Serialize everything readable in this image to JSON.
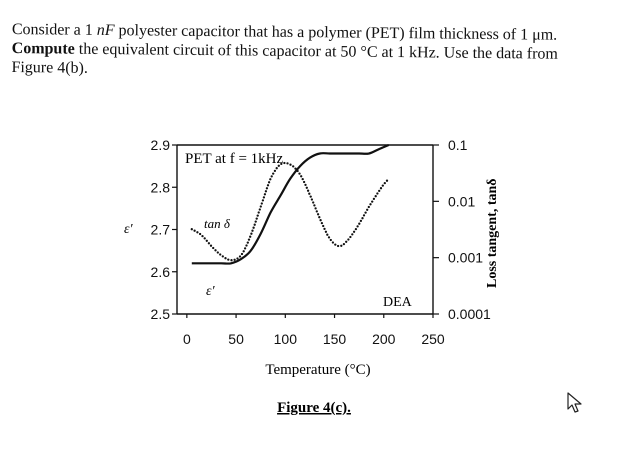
{
  "problem": {
    "line1_pre": "Consider a 1 ",
    "line1_unit": "nF",
    "line1_post": " polyester capacitor that has a polymer (PET) film thickness of 1 μm.",
    "line2_bold": "Compute",
    "line2_rest": " the equivalent circuit of this capacitor at 50 °C at 1 kHz. Use the data from",
    "line3": "Figure 4(b)."
  },
  "figure": {
    "caption": "Figure 4(c).",
    "annotation": "PET at f = 1kHz",
    "label_tan": "tan δ",
    "label_eps": "ε′",
    "label_dea": "DEA",
    "colors": {
      "ink": "#111111",
      "background": "#ffffff"
    }
  },
  "chart_data": {
    "type": "line",
    "xlabel": "Temperature (°C)",
    "ylabel_left": "ε′",
    "ylabel_right": "Loss tangent, tanδ",
    "xlim": [
      -10,
      250
    ],
    "ylim_left": [
      2.5,
      2.9
    ],
    "ylim_right_log": [
      0.0001,
      0.1
    ],
    "x_ticks": [
      "0",
      "50",
      "100",
      "150",
      "200",
      "250"
    ],
    "y_left_ticks": [
      "2.5",
      "2.6",
      "2.7",
      "2.8",
      "2.9"
    ],
    "y_right_ticks": [
      "0.0001",
      "0.001",
      "0.01",
      "0.1"
    ],
    "series": [
      {
        "axis": "left",
        "style": "solid",
        "x": [
          5,
          20,
          35,
          45,
          55,
          65,
          75,
          85,
          95,
          105,
          115,
          125,
          135,
          145,
          155,
          165,
          175,
          185,
          195,
          205
        ],
        "y": [
          2.62,
          2.62,
          2.62,
          2.62,
          2.63,
          2.65,
          2.69,
          2.74,
          2.78,
          2.82,
          2.85,
          2.87,
          2.88,
          2.88,
          2.88,
          2.88,
          2.88,
          2.88,
          2.89,
          2.9
        ]
      },
      {
        "axis": "right",
        "style": "dotted",
        "x": [
          5,
          15,
          25,
          35,
          45,
          55,
          65,
          75,
          85,
          95,
          105,
          115,
          125,
          135,
          145,
          155,
          165,
          175,
          185,
          195,
          200,
          205
        ],
        "y": [
          0.0032,
          0.0025,
          0.0016,
          0.0011,
          0.0009,
          0.0011,
          0.0025,
          0.008,
          0.025,
          0.045,
          0.045,
          0.03,
          0.013,
          0.005,
          0.0022,
          0.0016,
          0.0022,
          0.004,
          0.008,
          0.015,
          0.02,
          0.025
        ]
      }
    ]
  }
}
